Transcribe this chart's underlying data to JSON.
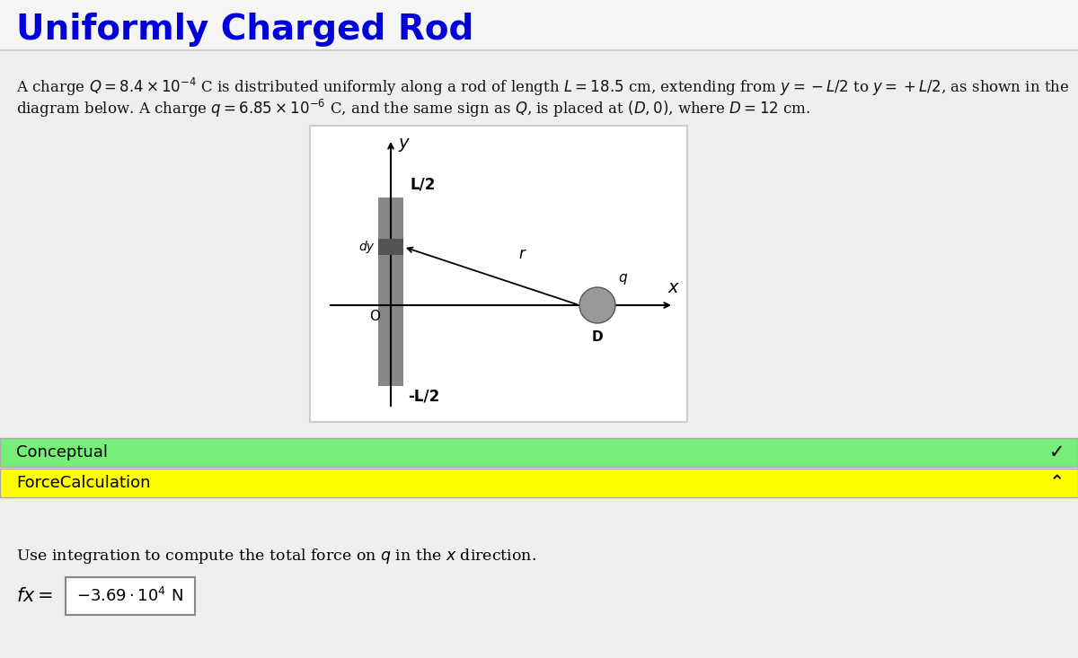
{
  "title": "Uniformly Charged Rod",
  "title_color": "#0000DD",
  "bg_color": "#EFEFEF",
  "diagram_bg": "#FFFFFF",
  "text_line1": "A charge $Q = 8.4 \\times 10^{-4}$ C is distributed uniformly along a rod of length $L = 18.5$ cm, extending from $y = -L/2$ to $y = +L/2$, as shown in the",
  "text_line2": "diagram below. A charge $q = 6.85 \\times 10^{-6}$ C, and the same sign as $Q$, is placed at $(D, 0)$, where $D = 12$ cm.",
  "conceptual_color": "#77EE77",
  "forcecalc_color": "#FFFF00",
  "conceptual_label": "Conceptual",
  "forcecalc_label": "ForceCalculation",
  "instruction_text": "Use integration to compute the total force on $q$ in the $x$ direction.",
  "rod_color": "#888888",
  "rod_dark_color": "#555555",
  "charge_color": "#999999",
  "top_stripe_color": "#DDDDFF"
}
